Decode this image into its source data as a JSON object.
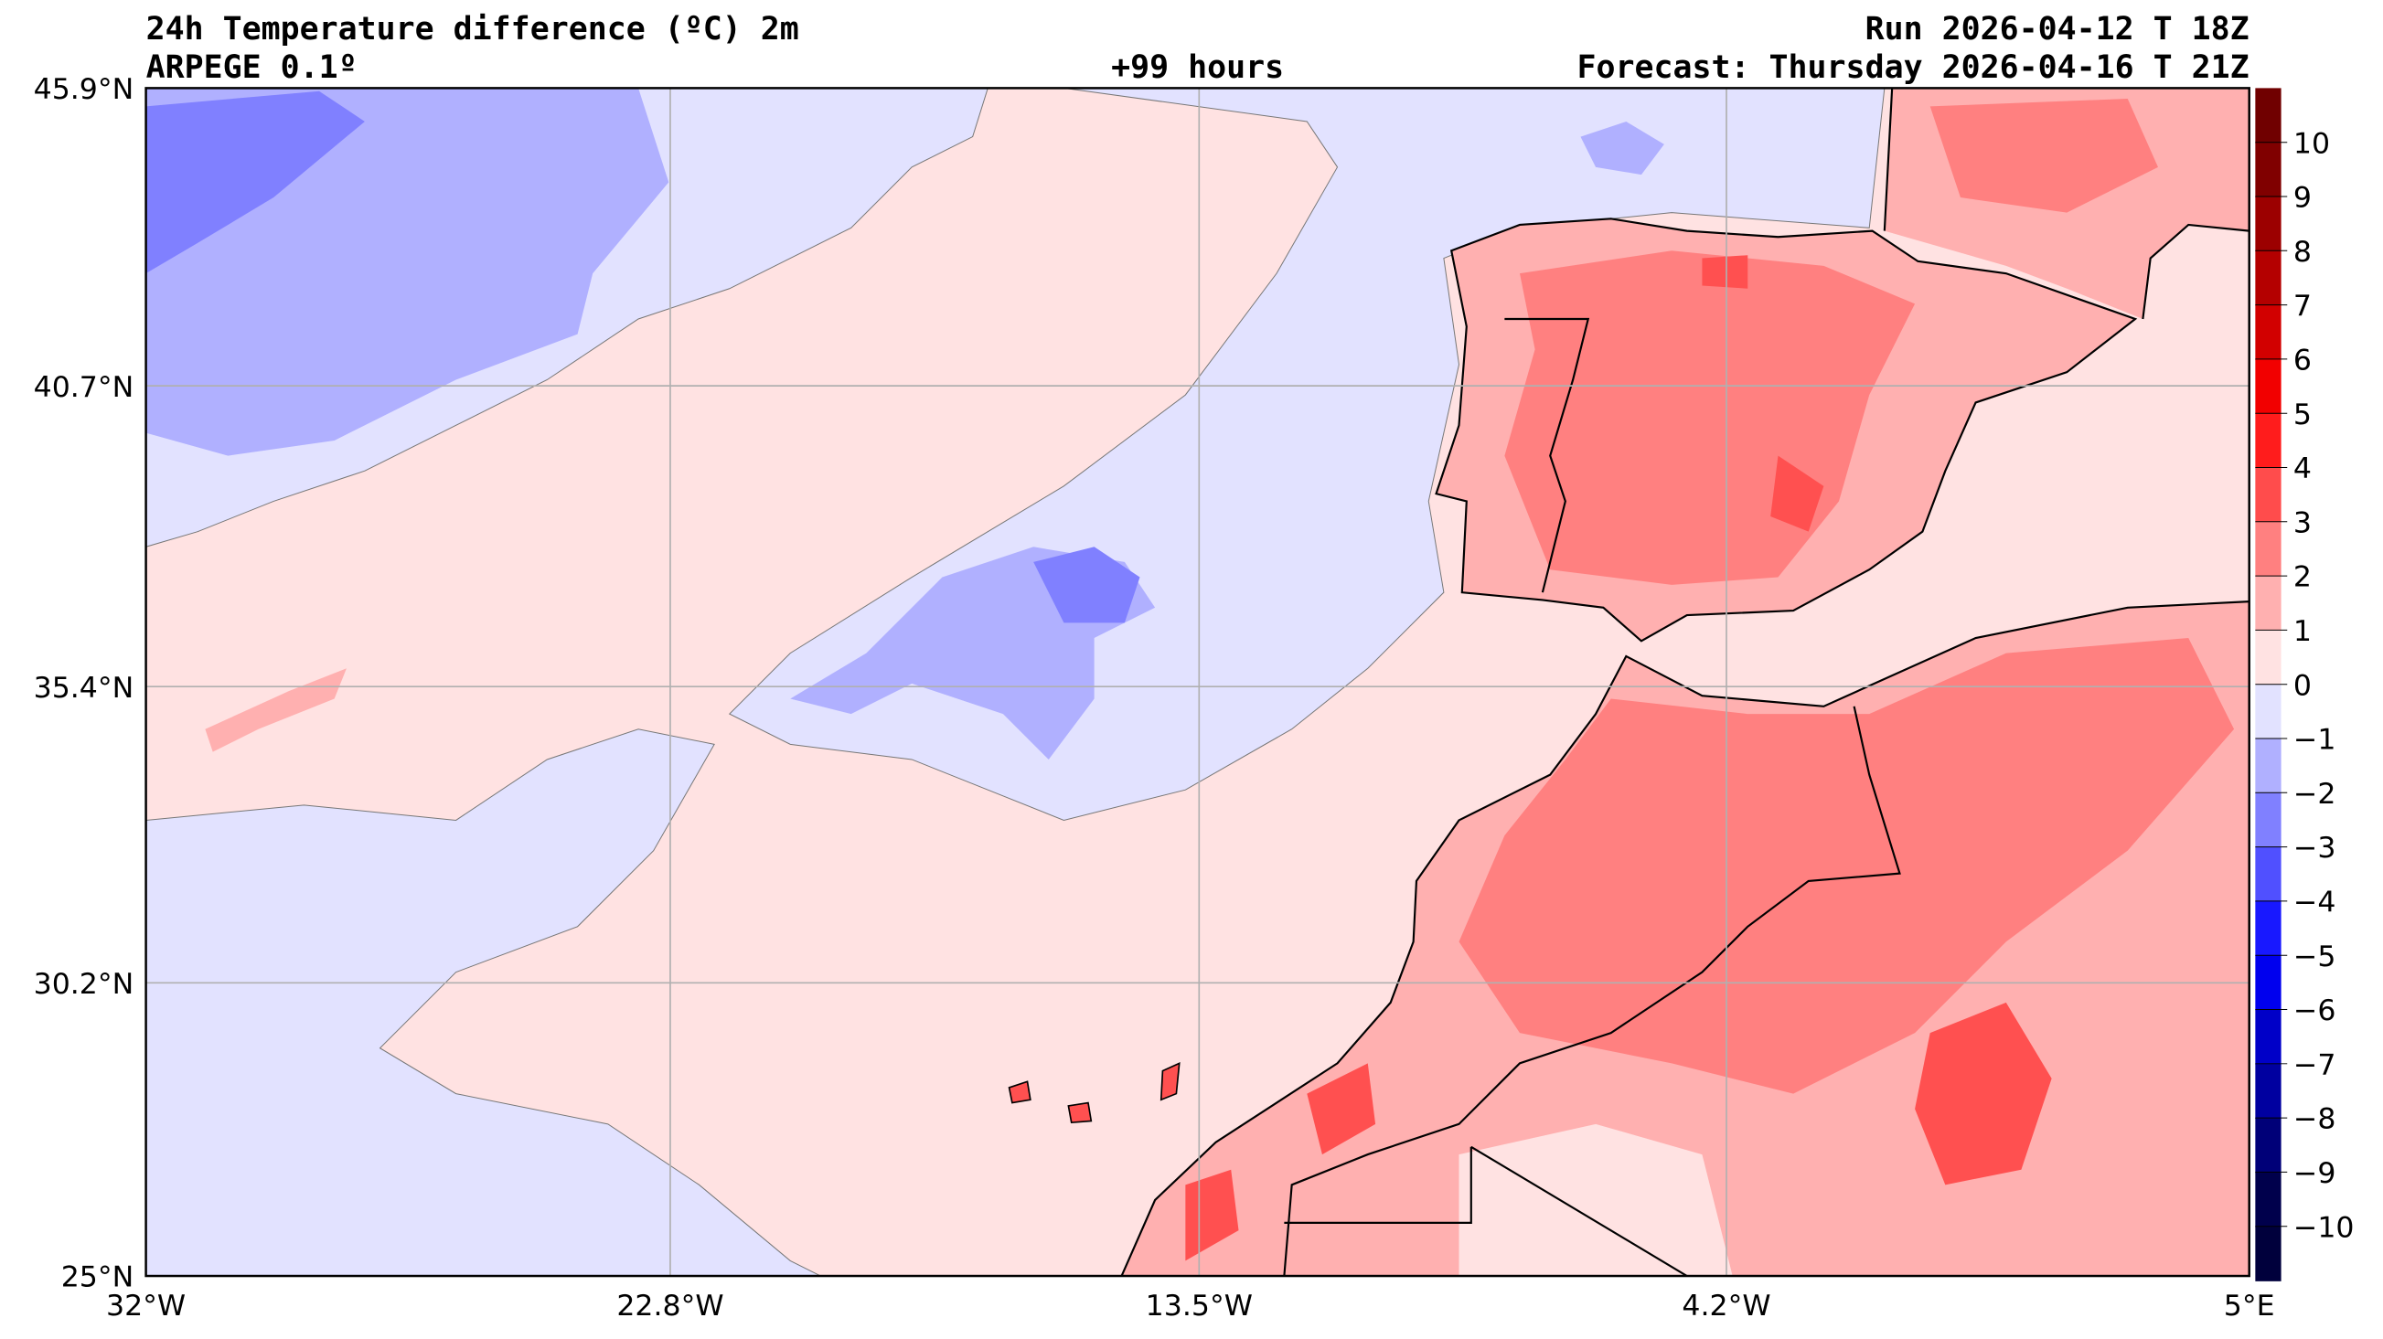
{
  "header": {
    "title": "24h Temperature difference (ºC) 2m",
    "model": "ARPEGE 0.1º",
    "lead": "+99 hours",
    "run": "Run 2026-04-12 T 18Z",
    "forecast": "Forecast: Thursday 2026-04-16 T 21Z"
  },
  "chart_data": {
    "type": "heatmap",
    "title": "24h Temperature difference (ºC) 2m",
    "xlabel": "",
    "ylabel": "",
    "x_ticks": [
      "32°W",
      "22.8°W",
      "13.5°W",
      "4.2°W",
      "5°E"
    ],
    "y_ticks": [
      "45.9°N",
      "40.7°N",
      "35.4°N",
      "30.2°N",
      "25°N"
    ],
    "xlim": [
      -32,
      5
    ],
    "ylim": [
      25,
      45.9
    ],
    "grid": true,
    "colorbar": {
      "ticks": [
        "10",
        "9",
        "8",
        "7",
        "6",
        "5",
        "4",
        "3",
        "2",
        "1",
        "0",
        "−1",
        "−2",
        "−3",
        "−4",
        "−5",
        "−6",
        "−7",
        "−8",
        "−9",
        "−10"
      ],
      "range": [
        -11,
        11
      ],
      "colors": [
        "#700000",
        "#800000",
        "#9c0000",
        "#b40000",
        "#d20000",
        "#f20000",
        "#ff1c1c",
        "#ff4c4c",
        "#ff8080",
        "#ffb0b0",
        "#ffe2e2",
        "#e2e2ff",
        "#b0b0ff",
        "#8080ff",
        "#5050ff",
        "#1818ff",
        "#0000ee",
        "#0000c8",
        "#0000a0",
        "#000078",
        "#00004c",
        "#00003c"
      ]
    },
    "summary": {
      "ocean_north": "-1 to -3 cooling",
      "ocean_central": "0 to 1",
      "iberia": "1 to 4 warming",
      "north_africa": "1 to 4 warming"
    }
  }
}
